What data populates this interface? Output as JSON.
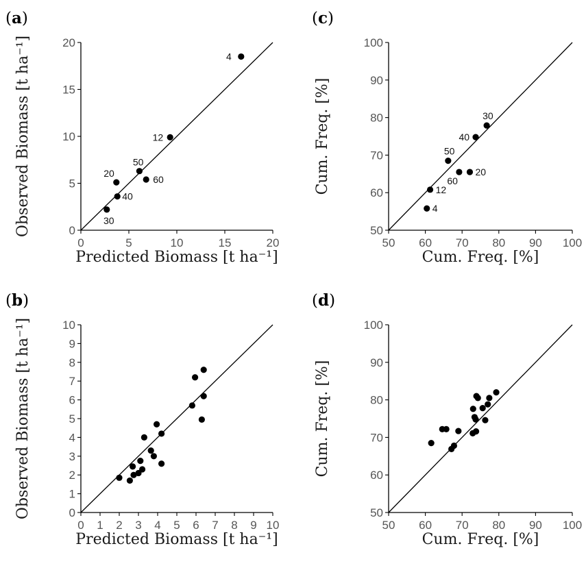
{
  "chart_data": [
    {
      "panel": "(a)",
      "letter": "a",
      "type": "scatter",
      "xlabel": "Predicted Biomass [t ha⁻¹]",
      "ylabel": "Observed Biomass [t ha⁻¹]",
      "xlim": [
        0,
        20
      ],
      "ylim": [
        0,
        20
      ],
      "xticks": [
        "0",
        "5",
        "10",
        "15",
        "20"
      ],
      "yticks": [
        "0",
        "5",
        "10",
        "15",
        "20"
      ],
      "reference_line": "1:1",
      "points": [
        {
          "x": 16.7,
          "y": 18.5,
          "label": "4"
        },
        {
          "x": 9.3,
          "y": 9.9,
          "label": "12"
        },
        {
          "x": 3.7,
          "y": 5.1,
          "label": "20"
        },
        {
          "x": 2.7,
          "y": 2.2,
          "label": "30"
        },
        {
          "x": 3.8,
          "y": 3.6,
          "label": "40"
        },
        {
          "x": 6.1,
          "y": 6.3,
          "label": "50"
        },
        {
          "x": 6.8,
          "y": 5.4,
          "label": "60"
        }
      ]
    },
    {
      "panel": "(b)",
      "letter": "b",
      "type": "scatter",
      "xlabel": "Predicted Biomass [t ha⁻¹]",
      "ylabel": "Observed Biomass [t ha⁻¹]",
      "xlim": [
        0,
        10
      ],
      "ylim": [
        0,
        10
      ],
      "xticks": [
        "0",
        "1",
        "2",
        "3",
        "4",
        "5",
        "6",
        "7",
        "8",
        "9",
        "10"
      ],
      "yticks": [
        "0",
        "1",
        "2",
        "3",
        "4",
        "5",
        "6",
        "7",
        "8",
        "9",
        "10"
      ],
      "reference_line": "1:1",
      "points": [
        {
          "x": 2.0,
          "y": 1.85
        },
        {
          "x": 2.55,
          "y": 1.7
        },
        {
          "x": 2.7,
          "y": 2.45
        },
        {
          "x": 2.75,
          "y": 2.0
        },
        {
          "x": 3.0,
          "y": 2.1
        },
        {
          "x": 3.1,
          "y": 2.75
        },
        {
          "x": 3.2,
          "y": 2.3
        },
        {
          "x": 3.3,
          "y": 4.0
        },
        {
          "x": 3.65,
          "y": 3.3
        },
        {
          "x": 3.8,
          "y": 3.0
        },
        {
          "x": 3.95,
          "y": 4.7
        },
        {
          "x": 4.2,
          "y": 4.2
        },
        {
          "x": 4.2,
          "y": 2.6
        },
        {
          "x": 5.8,
          "y": 5.7
        },
        {
          "x": 5.95,
          "y": 7.2
        },
        {
          "x": 6.3,
          "y": 4.95
        },
        {
          "x": 6.4,
          "y": 7.6
        },
        {
          "x": 6.4,
          "y": 6.2
        }
      ]
    },
    {
      "panel": "(c)",
      "letter": "c",
      "type": "scatter",
      "xlabel": "Cum. Freq. [%]",
      "ylabel": "Cum. Freq. [%]",
      "xlim": [
        50,
        100
      ],
      "ylim": [
        50,
        100
      ],
      "xticks": [
        "50",
        "60",
        "70",
        "80",
        "90",
        "100"
      ],
      "yticks": [
        "50",
        "60",
        "70",
        "80",
        "90",
        "100"
      ],
      "reference_line": "1:1",
      "points": [
        {
          "x": 60.4,
          "y": 55.8,
          "label": "4"
        },
        {
          "x": 61.3,
          "y": 60.8,
          "label": "12"
        },
        {
          "x": 72.1,
          "y": 65.5,
          "label": "20"
        },
        {
          "x": 76.7,
          "y": 77.9,
          "label": "30"
        },
        {
          "x": 73.7,
          "y": 74.8,
          "label": "40"
        },
        {
          "x": 66.2,
          "y": 68.5,
          "label": "50"
        },
        {
          "x": 69.2,
          "y": 65.5,
          "label": "60"
        }
      ]
    },
    {
      "panel": "(d)",
      "letter": "d",
      "type": "scatter",
      "xlabel": "Cum. Freq. [%]",
      "ylabel": "Cum. Freq. [%]",
      "xlim": [
        50,
        100
      ],
      "ylim": [
        50,
        100
      ],
      "xticks": [
        "50",
        "60",
        "70",
        "80",
        "90",
        "100"
      ],
      "yticks": [
        "50",
        "60",
        "70",
        "80",
        "90",
        "100"
      ],
      "reference_line": "1:1",
      "points": [
        {
          "x": 61.6,
          "y": 68.5
        },
        {
          "x": 64.6,
          "y": 72.2
        },
        {
          "x": 65.7,
          "y": 72.2
        },
        {
          "x": 67.1,
          "y": 66.9
        },
        {
          "x": 67.8,
          "y": 67.8
        },
        {
          "x": 69.0,
          "y": 71.7
        },
        {
          "x": 72.9,
          "y": 71.1
        },
        {
          "x": 73.0,
          "y": 77.6
        },
        {
          "x": 73.4,
          "y": 75.4
        },
        {
          "x": 73.7,
          "y": 74.8
        },
        {
          "x": 73.8,
          "y": 71.6
        },
        {
          "x": 73.9,
          "y": 81.0
        },
        {
          "x": 74.3,
          "y": 80.5
        },
        {
          "x": 75.6,
          "y": 77.8
        },
        {
          "x": 76.3,
          "y": 74.6
        },
        {
          "x": 77.0,
          "y": 78.8
        },
        {
          "x": 77.4,
          "y": 80.5
        },
        {
          "x": 79.3,
          "y": 82.0
        }
      ]
    }
  ]
}
